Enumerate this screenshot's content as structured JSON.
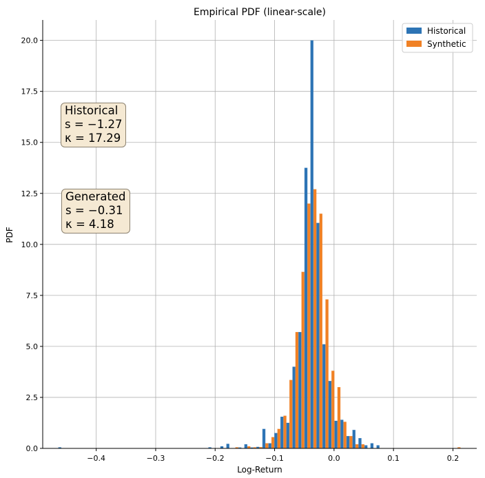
{
  "chart_data": {
    "type": "bar",
    "title": "Empirical PDF (linear-scale)",
    "xlabel": "Log-Return",
    "ylabel": "PDF",
    "xlim": [
      -0.49,
      0.24
    ],
    "ylim": [
      0,
      21
    ],
    "grid": true,
    "legend_position": "top-right",
    "xticks": [
      -0.4,
      -0.3,
      -0.2,
      -0.1,
      0.0,
      0.1,
      0.2
    ],
    "xtick_labels": [
      "−0.4",
      "−0.3",
      "−0.2",
      "−0.1",
      "0.0",
      "0.1",
      "0.2"
    ],
    "yticks": [
      0.0,
      2.5,
      5.0,
      7.5,
      10.0,
      12.5,
      15.0,
      17.5,
      20.0
    ],
    "ytick_labels": [
      "0.0",
      "2.5",
      "5.0",
      "7.5",
      "10.0",
      "12.5",
      "15.0",
      "17.5",
      "20.0"
    ],
    "bin_width": 0.0101,
    "bin_centers": [
      -0.4585,
      -0.2062,
      -0.1961,
      -0.186,
      -0.1759,
      -0.1658,
      -0.1557,
      -0.1456,
      -0.1355,
      -0.1254,
      -0.1153,
      -0.1052,
      -0.0951,
      -0.085,
      -0.0749,
      -0.0648,
      -0.0547,
      -0.0446,
      -0.0345,
      -0.0244,
      -0.0143,
      -0.0042,
      0.0059,
      0.016,
      0.0261,
      0.0362,
      0.0463,
      0.0564,
      0.0665,
      0.0766,
      0.0867,
      0.0968,
      0.1069,
      0.117,
      0.1271,
      0.1372,
      0.2079
    ],
    "series": [
      {
        "name": "Historical",
        "color": "#2d74b5",
        "values": [
          0.05,
          0.05,
          0.0,
          0.1,
          0.22,
          0.0,
          0.04,
          0.2,
          0.04,
          0.07,
          0.95,
          0.25,
          0.75,
          1.55,
          1.25,
          4.0,
          5.7,
          13.75,
          20.0,
          11.05,
          5.1,
          3.3,
          1.35,
          1.4,
          0.6,
          0.9,
          0.5,
          0.15,
          0.25,
          0.15,
          0.0,
          0.0,
          0.0,
          0.0,
          0.0,
          0.0,
          0.0
        ]
      },
      {
        "name": "Synthetic",
        "color": "#f08125",
        "values": [
          0.0,
          0.0,
          0.0,
          0.0,
          0.0,
          0.05,
          0.0,
          0.1,
          0.05,
          0.06,
          0.25,
          0.55,
          0.95,
          1.6,
          3.35,
          5.7,
          8.65,
          12.0,
          12.7,
          11.5,
          7.3,
          3.8,
          3.0,
          1.3,
          0.6,
          0.2,
          0.2,
          0.0,
          0.0,
          0.0,
          0.0,
          0.0,
          0.0,
          0.0,
          0.0,
          0.0,
          0.05
        ]
      }
    ],
    "annotations": [
      {
        "title": "Historical",
        "s_label": "s = −1.27",
        "k_label": "κ = 17.29"
      },
      {
        "title": "Generated",
        "s_label": "s = −0.31",
        "k_label": "κ = 4.18"
      }
    ]
  }
}
